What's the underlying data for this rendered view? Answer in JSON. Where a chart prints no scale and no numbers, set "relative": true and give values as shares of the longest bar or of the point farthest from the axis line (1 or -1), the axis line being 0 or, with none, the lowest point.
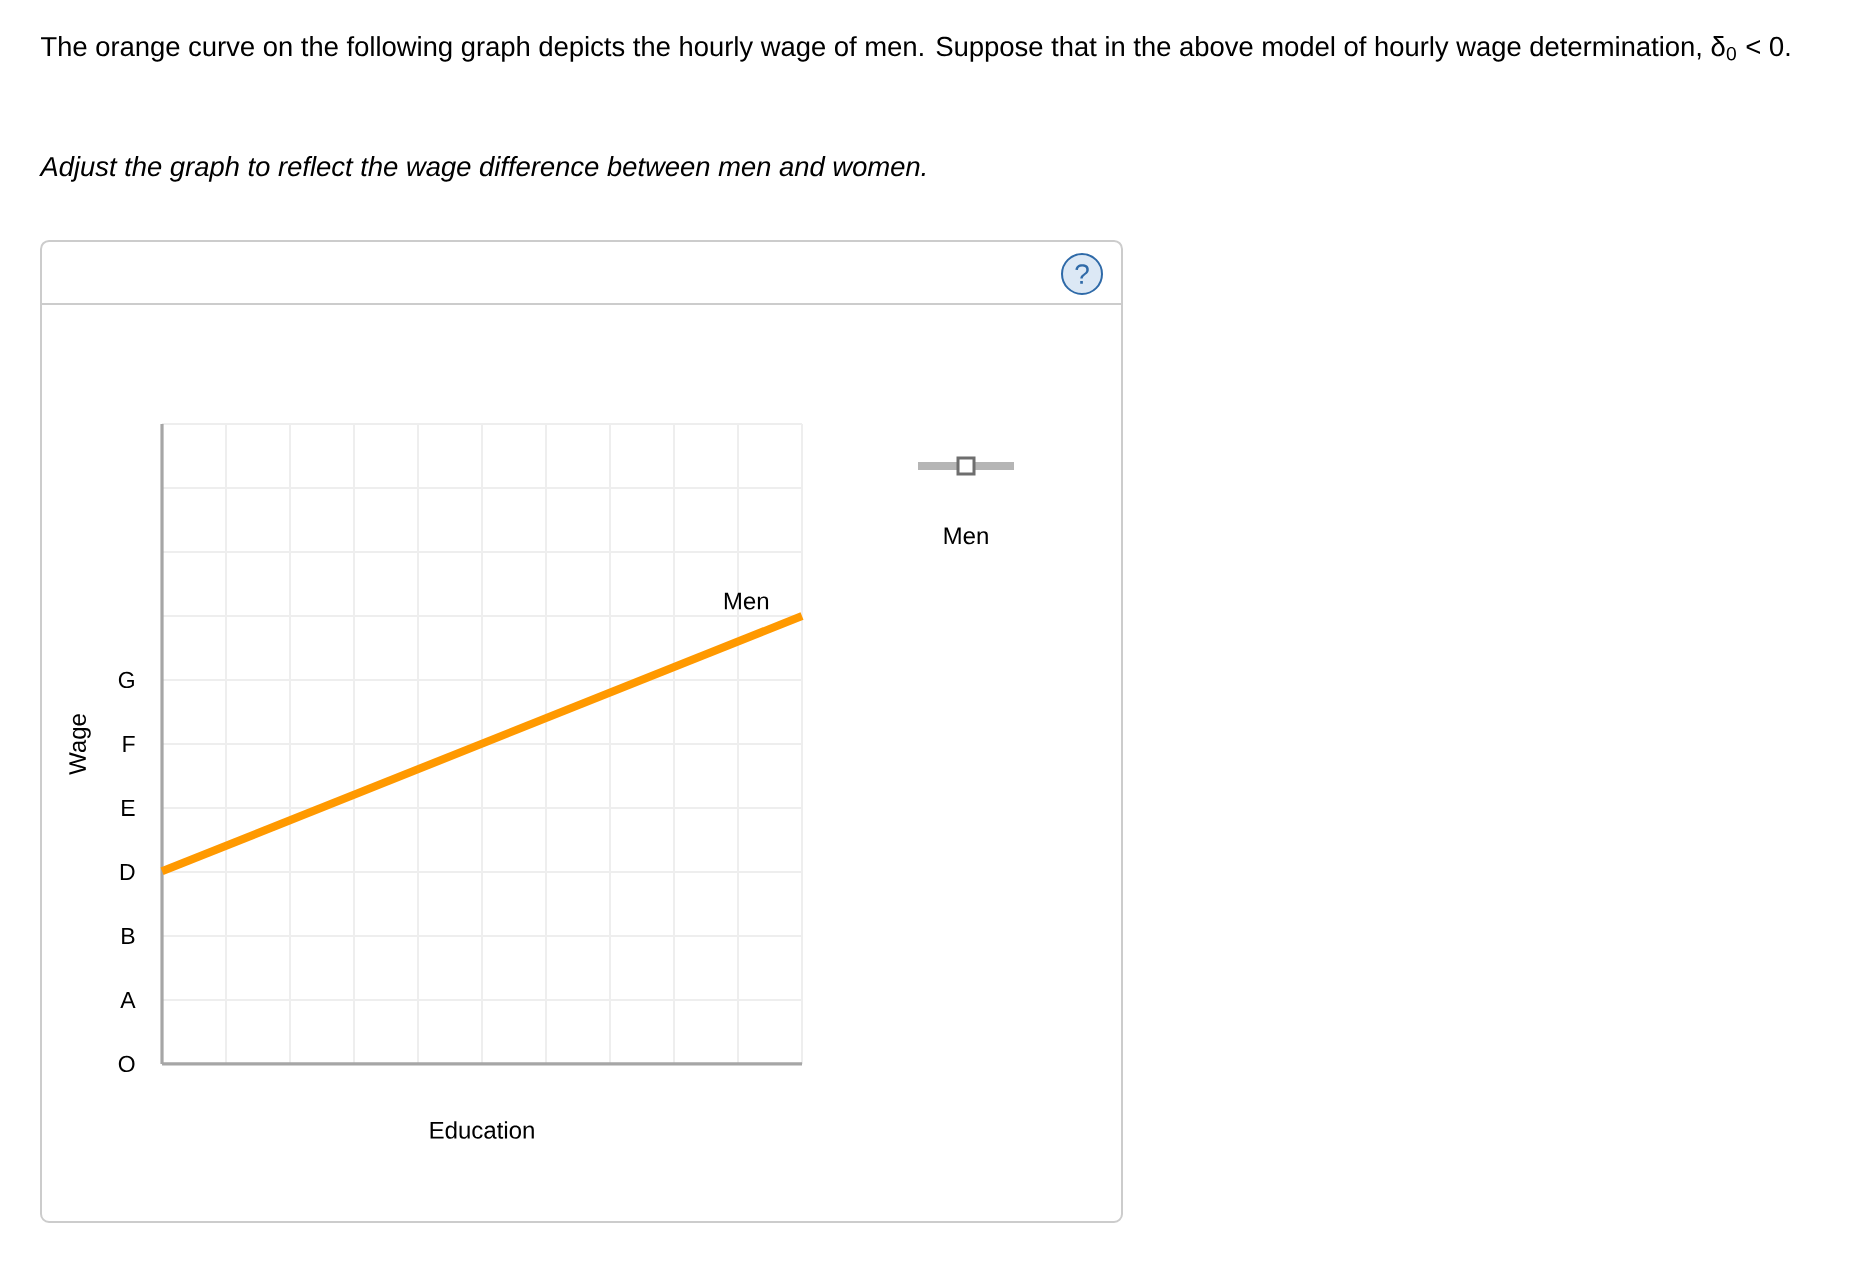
{
  "chart_data": {
    "type": "line",
    "title": "The orange curve on the following graph depicts the hourly wage of men. Suppose that in the above model of hourly wage determination, δ$_{0}$ < 0.",
    "subtitle": "Adjust the graph to reflect the wage difference between men and women.",
    "xlabel": "Education",
    "ylabel": "Wage",
    "categories": [
      null,
      null
    ],
    "relative": true,
    "series": [
      {
        "name": "Men",
        "color": "#ff9900",
        "values": [
          0.43,
          1
        ]
      }
    ],
    "grid": true,
    "marker": "none",
    "line_style": "solid",
    "annotations": [
      "Men",
      "?",
      "O",
      "A",
      "B",
      "D",
      "E",
      "F",
      "G"
    ]
  }
}
